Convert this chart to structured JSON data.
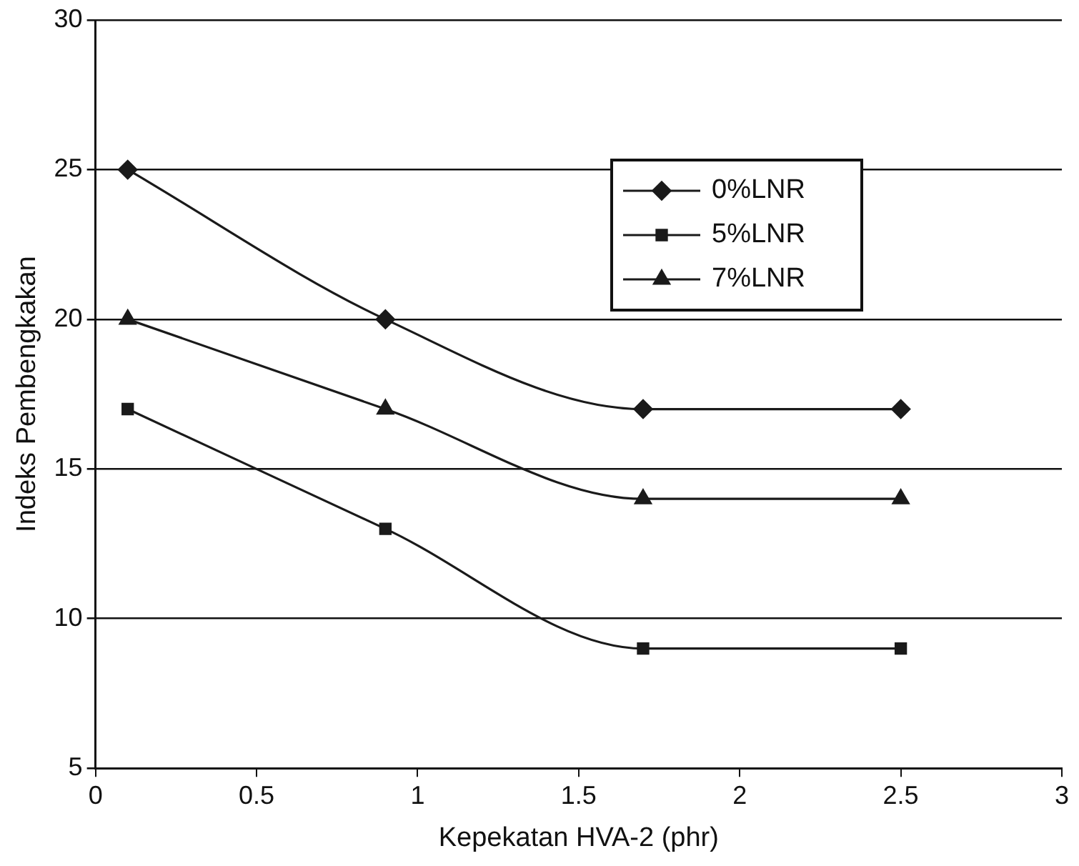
{
  "chart_data": {
    "type": "line",
    "xlabel": "Kepekatan HVA-2 (phr)",
    "ylabel": "Indeks Pembengkakan",
    "x": [
      0.1,
      0.9,
      1.7,
      2.5
    ],
    "series": [
      {
        "name": "0%LNR",
        "color": "#1a1a1a",
        "marker": "diamond",
        "values": [
          25,
          20,
          17,
          17
        ]
      },
      {
        "name": "5%LNR",
        "color": "#1a1a1a",
        "marker": "square",
        "values": [
          17,
          13,
          9,
          9
        ]
      },
      {
        "name": "7%LNR",
        "color": "#1a1a1a",
        "marker": "triangle",
        "values": [
          20,
          17,
          14,
          14
        ]
      }
    ],
    "xlim": [
      0,
      3
    ],
    "xticks": [
      0,
      0.5,
      1,
      1.5,
      2,
      2.5,
      3
    ],
    "ylim": [
      5,
      30
    ],
    "yticks": [
      5,
      10,
      15,
      20,
      25,
      30
    ],
    "grid": "y",
    "legend": "top right",
    "line_style": "solid"
  }
}
